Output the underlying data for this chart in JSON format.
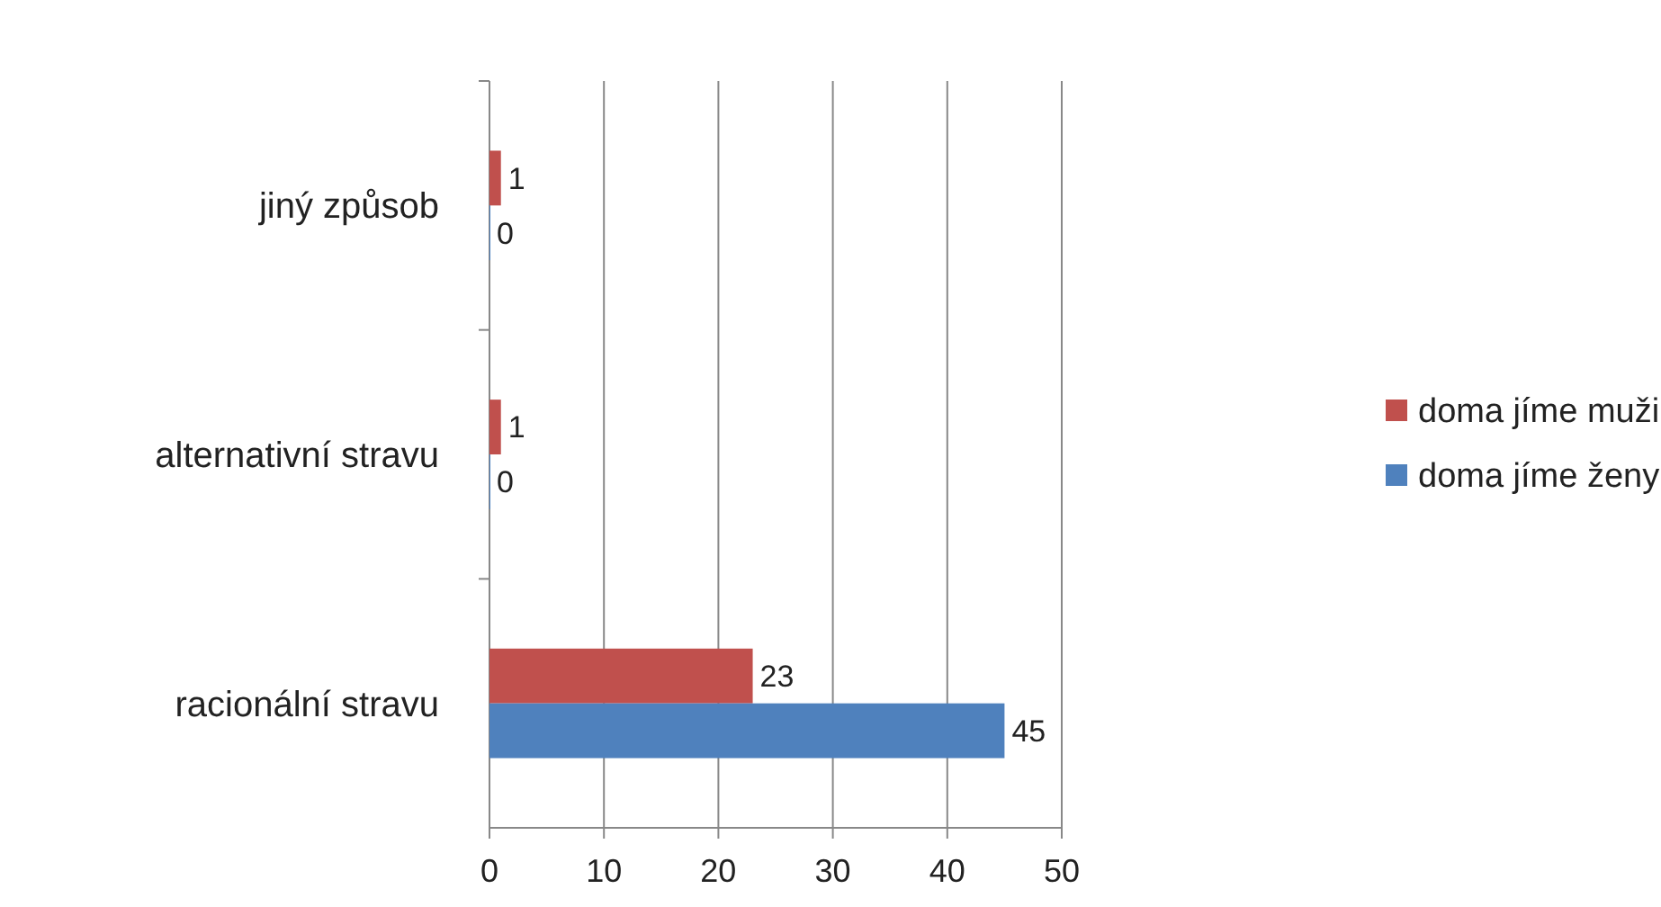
{
  "chart_data": {
    "type": "bar",
    "orientation": "horizontal",
    "categories": [
      "jiný způsob",
      "alternativní stravu",
      "racionální stravu"
    ],
    "series": [
      {
        "name": "doma jíme muži",
        "color": "#c0504d",
        "values": [
          1,
          1,
          23
        ]
      },
      {
        "name": "doma jíme ženy",
        "color": "#4f81bd",
        "values": [
          0,
          0,
          45
        ]
      }
    ],
    "xlim": [
      0,
      50
    ],
    "xticks": [
      0,
      10,
      20,
      30,
      40,
      50
    ],
    "grid": "x",
    "legend": "right",
    "data_labels": true
  }
}
